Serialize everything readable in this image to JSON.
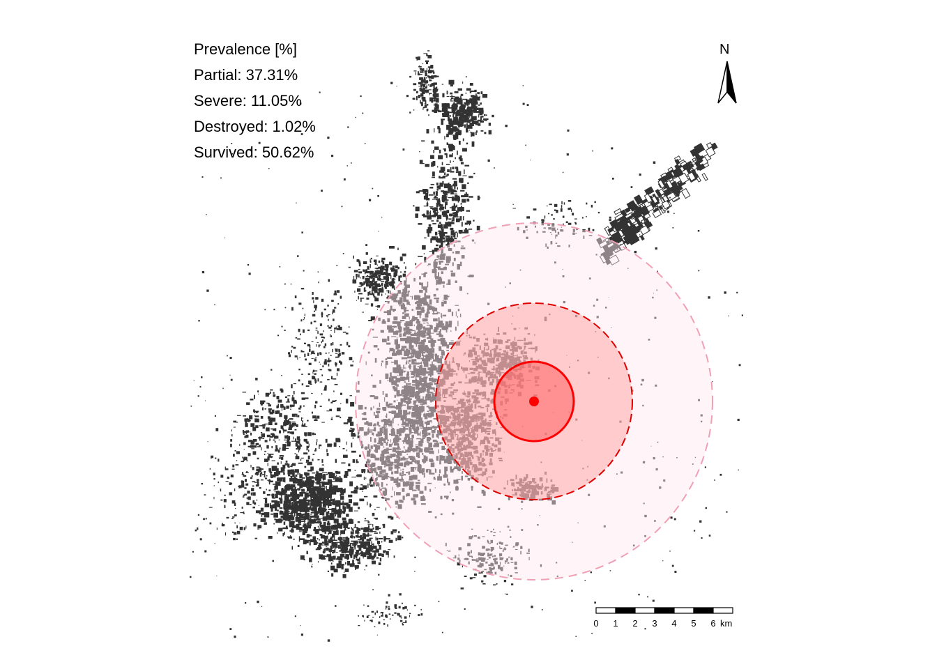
{
  "legend": {
    "title": "Prevalence [%]",
    "items": [
      {
        "label": "Partial: 37.31%",
        "value": 37.31
      },
      {
        "label": "Severe: 11.05%",
        "value": 11.05
      },
      {
        "label": "Destroyed: 1.02%",
        "value": 1.02
      },
      {
        "label": "Survived: 50.62%",
        "value": 50.62
      }
    ]
  },
  "north_arrow": {
    "label": "N"
  },
  "scale_bar": {
    "ticks": [
      "0",
      "1",
      "2",
      "3",
      "4",
      "5",
      "6"
    ],
    "unit": "km"
  },
  "zones": [
    {
      "name": "destroyed",
      "fill": "#ff6b6b",
      "stroke": "#ff0000",
      "style": "solid"
    },
    {
      "name": "severe",
      "fill": "#ffb3b3",
      "stroke": "#e00000",
      "style": "dashed"
    },
    {
      "name": "partial",
      "fill": "#ffe6ee",
      "stroke": "#f0a0b5",
      "style": "dashed"
    }
  ],
  "colors": {
    "buildings": "#333333",
    "ground_zero": "#ff0000",
    "background": "#ffffff"
  }
}
